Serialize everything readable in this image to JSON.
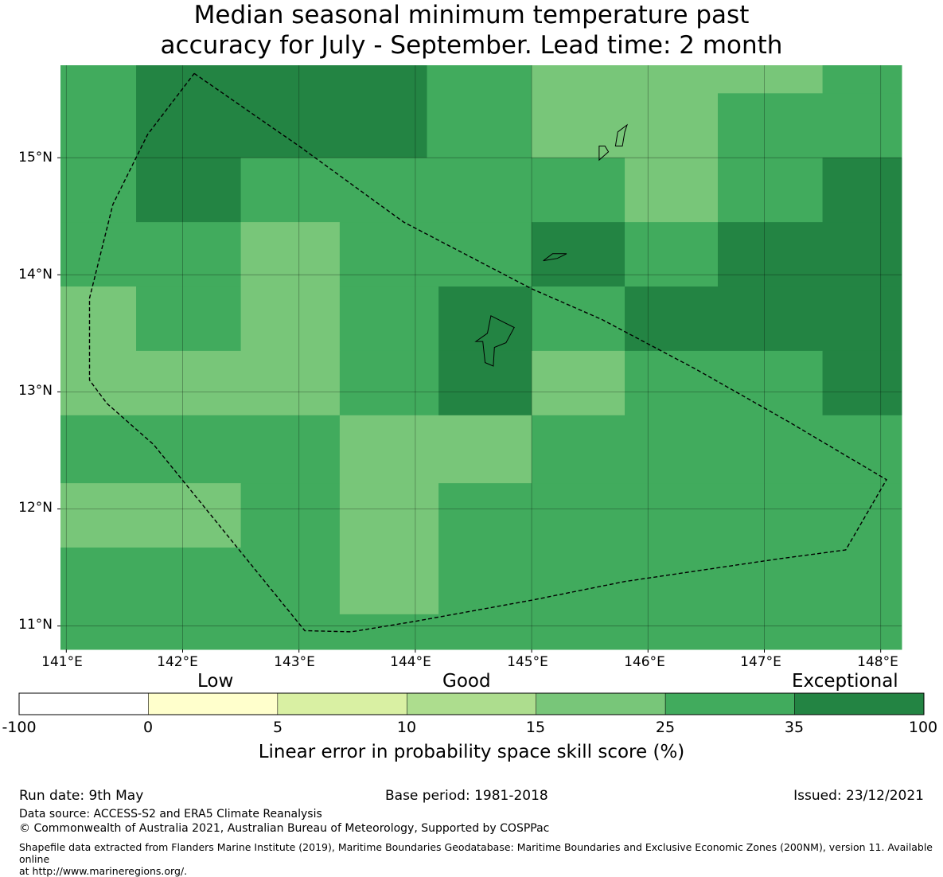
{
  "title": {
    "line1": "Median seasonal minimum temperature past",
    "line2": "accuracy for July - September. Lead time: 2 month"
  },
  "map": {
    "extent": {
      "lon_min": 140.95,
      "lon_max": 148.18,
      "lat_min": 10.8,
      "lat_max": 15.79
    },
    "x_ticks": [
      "141°E",
      "142°E",
      "143°E",
      "144°E",
      "145°E",
      "146°E",
      "147°E",
      "148°E"
    ],
    "y_ticks": [
      "15°N",
      "14°N",
      "13°N",
      "12°N",
      "11°N"
    ],
    "grid": true,
    "cells": [
      {
        "lon": [
          140.95,
          141.6
        ],
        "lat": [
          15.0,
          15.79
        ],
        "bin": 5
      },
      {
        "lon": [
          141.6,
          144.1
        ],
        "lat": [
          15.0,
          15.79
        ],
        "bin": 6
      },
      {
        "lon": [
          144.1,
          145.0
        ],
        "lat": [
          15.0,
          15.79
        ],
        "bin": 5
      },
      {
        "lon": [
          145.0,
          147.5
        ],
        "lat": [
          15.55,
          15.79
        ],
        "bin": 4
      },
      {
        "lon": [
          147.5,
          148.18
        ],
        "lat": [
          15.55,
          15.79
        ],
        "bin": 5
      },
      {
        "lon": [
          145.0,
          146.6
        ],
        "lat": [
          15.0,
          15.55
        ],
        "bin": 4
      },
      {
        "lon": [
          146.6,
          148.18
        ],
        "lat": [
          15.0,
          15.55
        ],
        "bin": 5
      },
      {
        "lon": [
          140.95,
          141.6
        ],
        "lat": [
          14.45,
          15.0
        ],
        "bin": 5
      },
      {
        "lon": [
          141.6,
          142.5
        ],
        "lat": [
          14.45,
          15.0
        ],
        "bin": 6
      },
      {
        "lon": [
          142.5,
          145.8
        ],
        "lat": [
          14.45,
          15.0
        ],
        "bin": 5
      },
      {
        "lon": [
          145.8,
          146.6
        ],
        "lat": [
          14.45,
          15.0
        ],
        "bin": 4
      },
      {
        "lon": [
          146.6,
          147.5
        ],
        "lat": [
          14.45,
          15.0
        ],
        "bin": 5
      },
      {
        "lon": [
          147.5,
          148.18
        ],
        "lat": [
          14.45,
          15.0
        ],
        "bin": 6
      },
      {
        "lon": [
          140.95,
          142.5
        ],
        "lat": [
          13.9,
          14.45
        ],
        "bin": 5
      },
      {
        "lon": [
          142.5,
          143.35
        ],
        "lat": [
          13.9,
          14.45
        ],
        "bin": 4
      },
      {
        "lon": [
          143.35,
          145.0
        ],
        "lat": [
          13.9,
          14.45
        ],
        "bin": 5
      },
      {
        "lon": [
          145.0,
          145.8
        ],
        "lat": [
          13.9,
          14.45
        ],
        "bin": 6
      },
      {
        "lon": [
          145.8,
          146.6
        ],
        "lat": [
          13.9,
          14.45
        ],
        "bin": 5
      },
      {
        "lon": [
          146.6,
          148.18
        ],
        "lat": [
          13.9,
          14.45
        ],
        "bin": 6
      },
      {
        "lon": [
          140.95,
          141.6
        ],
        "lat": [
          13.35,
          13.9
        ],
        "bin": 4
      },
      {
        "lon": [
          141.6,
          142.5
        ],
        "lat": [
          13.35,
          13.9
        ],
        "bin": 5
      },
      {
        "lon": [
          142.5,
          143.35
        ],
        "lat": [
          13.35,
          13.9
        ],
        "bin": 4
      },
      {
        "lon": [
          143.35,
          144.2
        ],
        "lat": [
          13.35,
          13.9
        ],
        "bin": 5
      },
      {
        "lon": [
          144.2,
          145.0
        ],
        "lat": [
          13.35,
          13.9
        ],
        "bin": 6
      },
      {
        "lon": [
          145.0,
          145.8
        ],
        "lat": [
          13.35,
          13.9
        ],
        "bin": 5
      },
      {
        "lon": [
          145.8,
          148.18
        ],
        "lat": [
          13.35,
          13.9
        ],
        "bin": 6
      },
      {
        "lon": [
          140.95,
          143.35
        ],
        "lat": [
          12.8,
          13.35
        ],
        "bin": 4
      },
      {
        "lon": [
          143.35,
          144.2
        ],
        "lat": [
          12.8,
          13.35
        ],
        "bin": 5
      },
      {
        "lon": [
          144.2,
          145.0
        ],
        "lat": [
          12.8,
          13.35
        ],
        "bin": 6
      },
      {
        "lon": [
          145.0,
          145.8
        ],
        "lat": [
          12.8,
          13.35
        ],
        "bin": 4
      },
      {
        "lon": [
          145.8,
          147.5
        ],
        "lat": [
          12.8,
          13.35
        ],
        "bin": 5
      },
      {
        "lon": [
          147.5,
          148.18
        ],
        "lat": [
          12.8,
          13.35
        ],
        "bin": 6
      },
      {
        "lon": [
          140.95,
          143.35
        ],
        "lat": [
          12.22,
          12.8
        ],
        "bin": 5
      },
      {
        "lon": [
          143.35,
          145.0
        ],
        "lat": [
          12.22,
          12.8
        ],
        "bin": 4
      },
      {
        "lon": [
          145.0,
          148.18
        ],
        "lat": [
          12.22,
          12.8
        ],
        "bin": 5
      },
      {
        "lon": [
          140.95,
          142.5
        ],
        "lat": [
          11.67,
          12.22
        ],
        "bin": 4
      },
      {
        "lon": [
          142.5,
          143.35
        ],
        "lat": [
          11.67,
          12.22
        ],
        "bin": 5
      },
      {
        "lon": [
          143.35,
          144.2
        ],
        "lat": [
          11.67,
          12.22
        ],
        "bin": 4
      },
      {
        "lon": [
          144.2,
          148.18
        ],
        "lat": [
          11.67,
          12.22
        ],
        "bin": 5
      },
      {
        "lon": [
          140.95,
          143.35
        ],
        "lat": [
          11.1,
          11.67
        ],
        "bin": 5
      },
      {
        "lon": [
          143.35,
          144.2
        ],
        "lat": [
          11.1,
          11.67
        ],
        "bin": 4
      },
      {
        "lon": [
          144.2,
          148.18
        ],
        "lat": [
          11.1,
          11.67
        ],
        "bin": 5
      },
      {
        "lon": [
          140.95,
          148.18
        ],
        "lat": [
          10.8,
          11.1
        ],
        "bin": 5
      }
    ],
    "boundary_eez": [
      [
        142.1,
        15.72
      ],
      [
        143.0,
        15.1
      ],
      [
        143.9,
        14.45
      ],
      [
        145.0,
        13.88
      ],
      [
        145.6,
        13.62
      ],
      [
        146.4,
        13.2
      ],
      [
        147.2,
        12.75
      ],
      [
        148.05,
        12.25
      ],
      [
        147.7,
        11.65
      ],
      [
        147.1,
        11.57
      ],
      [
        145.8,
        11.38
      ],
      [
        145.0,
        11.22
      ],
      [
        144.0,
        11.04
      ],
      [
        143.45,
        10.95
      ],
      [
        143.05,
        10.96
      ],
      [
        141.75,
        12.55
      ],
      [
        141.35,
        12.9
      ],
      [
        141.2,
        13.1
      ],
      [
        141.2,
        13.8
      ],
      [
        141.4,
        14.6
      ],
      [
        141.7,
        15.2
      ],
      [
        142.1,
        15.72
      ]
    ],
    "islands": [
      {
        "name": "",
        "points": [
          [
            144.65,
            13.65
          ],
          [
            144.85,
            13.55
          ],
          [
            144.78,
            13.42
          ],
          [
            144.68,
            13.38
          ],
          [
            144.67,
            13.22
          ],
          [
            144.6,
            13.25
          ],
          [
            144.58,
            13.43
          ],
          [
            144.52,
            13.43
          ],
          [
            144.62,
            13.5
          ],
          [
            144.65,
            13.65
          ]
        ]
      },
      {
        "name": "",
        "points": [
          [
            145.1,
            14.12
          ],
          [
            145.18,
            14.18
          ],
          [
            145.3,
            14.18
          ],
          [
            145.22,
            14.14
          ],
          [
            145.1,
            14.12
          ]
        ]
      },
      {
        "name": "",
        "points": [
          [
            145.58,
            14.98
          ],
          [
            145.66,
            15.05
          ],
          [
            145.63,
            15.1
          ],
          [
            145.58,
            15.1
          ],
          [
            145.58,
            14.98
          ]
        ]
      },
      {
        "name": "",
        "points": [
          [
            145.72,
            15.1
          ],
          [
            145.74,
            15.22
          ],
          [
            145.82,
            15.28
          ],
          [
            145.8,
            15.22
          ],
          [
            145.78,
            15.1
          ],
          [
            145.72,
            15.1
          ]
        ]
      }
    ]
  },
  "colorbar": {
    "categories": [
      "Low",
      "Good",
      "Exceptional"
    ],
    "tick_labels": [
      "-100",
      "0",
      "5",
      "10",
      "15",
      "25",
      "35",
      "100"
    ],
    "colors": [
      "#ffffff",
      "#ffffcc",
      "#d9f0a3",
      "#addd8e",
      "#78c679",
      "#41ab5d",
      "#238443"
    ],
    "title": "Linear error in probability space skill score (%)"
  },
  "footer": {
    "run_date": "Run date: 9th May",
    "base_period": "Base period: 1981-2018",
    "issued": "Issued: 23/12/2021",
    "data_source": "Data source: ACCESS-S2 and ERA5 Climate Reanalysis",
    "copyright": "© Commonwealth of Australia 2021, Australian Bureau of Meteorology, Supported by COSPPac",
    "shapefile_line1": "Shapefile data extracted from Flanders Marine Institute (2019), Maritime Boundaries Geodatabase: Maritime Boundaries and Exclusive Economic Zones (200NM), version 11. Available online",
    "shapefile_line2": "at http://www.marineregions.org/."
  }
}
